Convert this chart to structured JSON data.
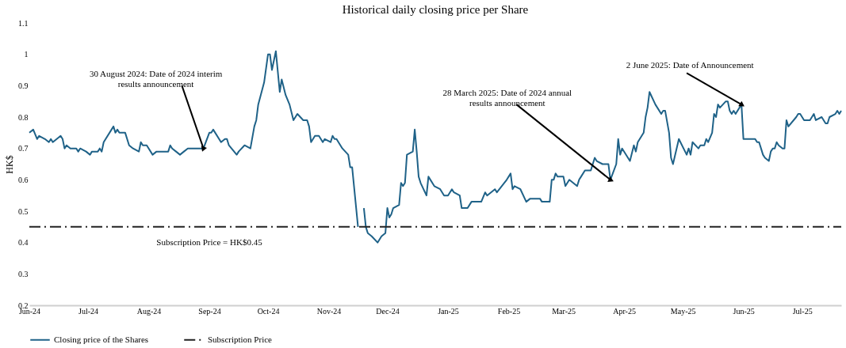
{
  "chart_data": {
    "type": "line",
    "title": "Historical daily closing price per Share",
    "ylabel": "HK$",
    "xlim": [
      "2024-06-01",
      "2025-07-21"
    ],
    "xticks": [
      {
        "value": "2024-06-01",
        "label": "Jun-24"
      },
      {
        "value": "2024-07-01",
        "label": "Jul-24"
      },
      {
        "value": "2024-08-01",
        "label": "Aug-24"
      },
      {
        "value": "2024-09-01",
        "label": "Sep-24"
      },
      {
        "value": "2024-10-01",
        "label": "Oct-24"
      },
      {
        "value": "2024-11-01",
        "label": "Nov-24"
      },
      {
        "value": "2024-12-01",
        "label": "Dec-24"
      },
      {
        "value": "2025-01-01",
        "label": "Jan-25"
      },
      {
        "value": "2025-02-01",
        "label": "Feb-25"
      },
      {
        "value": "2025-03-01",
        "label": "Mar-25"
      },
      {
        "value": "2025-04-01",
        "label": "Apr-25"
      },
      {
        "value": "2025-05-01",
        "label": "May-25"
      },
      {
        "value": "2025-06-01",
        "label": "Jun-25"
      },
      {
        "value": "2025-07-01",
        "label": "Jul-25"
      }
    ],
    "ylim": [
      0.2,
      1.1
    ],
    "yticks": [
      0.2,
      0.3,
      0.4,
      0.5,
      0.6,
      0.7,
      0.8,
      0.9,
      1,
      1.1
    ],
    "grid": false,
    "legend": "bottom",
    "marker": "none",
    "series": [
      {
        "name": "Closing price of the Shares",
        "color": "#1f6288",
        "line_style": "solid",
        "x": [
          "2024-06-01",
          "2024-06-03",
          "2024-06-05",
          "2024-06-06",
          "2024-06-09",
          "2024-06-11",
          "2024-06-12",
          "2024-06-13",
          "2024-06-15",
          "2024-06-17",
          "2024-06-18",
          "2024-06-19",
          "2024-06-20",
          "2024-06-22",
          "2024-06-25",
          "2024-06-26",
          "2024-06-27",
          "2024-06-30",
          "2024-07-02",
          "2024-07-03",
          "2024-07-06",
          "2024-07-07",
          "2024-07-08",
          "2024-07-09",
          "2024-07-14",
          "2024-07-15",
          "2024-07-16",
          "2024-07-17",
          "2024-07-20",
          "2024-07-22",
          "2024-07-24",
          "2024-07-27",
          "2024-07-28",
          "2024-07-29",
          "2024-07-31",
          "2024-08-03",
          "2024-08-05",
          "2024-08-11",
          "2024-08-12",
          "2024-08-13",
          "2024-08-15",
          "2024-08-17",
          "2024-08-19",
          "2024-08-21",
          "2024-08-29",
          "2024-09-01",
          "2024-09-02",
          "2024-09-03",
          "2024-09-07",
          "2024-09-09",
          "2024-09-10",
          "2024-09-11",
          "2024-09-15",
          "2024-09-16",
          "2024-09-19",
          "2024-09-22",
          "2024-09-24",
          "2024-09-25",
          "2024-09-26",
          "2024-09-29",
          "2024-10-01",
          "2024-10-02",
          "2024-10-03",
          "2024-10-05",
          "2024-10-07",
          "2024-10-08",
          "2024-10-10",
          "2024-10-12",
          "2024-10-14",
          "2024-10-16",
          "2024-10-19",
          "2024-10-21",
          "2024-10-22",
          "2024-10-23",
          "2024-10-25",
          "2024-10-27",
          "2024-10-29",
          "2024-10-30",
          "2024-11-02",
          "2024-11-03",
          "2024-11-04",
          "2024-11-05",
          "2024-11-08",
          "2024-11-11",
          "2024-11-12",
          "2024-11-13",
          "2024-11-16",
          "2024-11-17",
          "2024-11-19",
          "2024-11-20",
          "2024-11-21",
          "2024-11-23",
          "2024-11-26",
          "2024-11-28",
          "2024-11-30",
          "2024-12-01",
          "2024-12-02",
          "2024-12-03",
          "2024-12-04",
          "2024-12-07",
          "2024-12-08",
          "2024-12-09",
          "2024-12-10",
          "2024-12-11",
          "2024-12-14",
          "2024-12-15",
          "2024-12-16",
          "2024-12-17",
          "2024-12-18",
          "2024-12-21",
          "2024-12-22",
          "2024-12-25",
          "2024-12-28",
          "2024-12-30",
          "2025-01-01",
          "2025-01-03",
          "2025-01-04",
          "2025-01-07",
          "2025-01-08",
          "2025-01-11",
          "2025-01-13",
          "2025-01-18",
          "2025-01-20",
          "2025-01-21",
          "2025-01-25",
          "2025-01-26",
          "2025-01-31",
          "2025-02-02",
          "2025-02-03",
          "2025-02-04",
          "2025-02-07",
          "2025-02-10",
          "2025-02-12",
          "2025-02-17",
          "2025-02-18",
          "2025-02-22",
          "2025-02-23",
          "2025-02-24",
          "2025-02-25",
          "2025-02-26",
          "2025-03-01",
          "2025-03-02",
          "2025-03-04",
          "2025-03-08",
          "2025-03-09",
          "2025-03-10",
          "2025-03-12",
          "2025-03-15",
          "2025-03-17",
          "2025-03-18",
          "2025-03-21",
          "2025-03-24",
          "2025-03-25",
          "2025-03-28",
          "2025-03-29",
          "2025-03-30",
          "2025-03-31",
          "2025-04-04",
          "2025-04-06",
          "2025-04-07",
          "2025-04-08",
          "2025-04-11",
          "2025-04-12",
          "2025-04-13",
          "2025-04-14",
          "2025-04-17",
          "2025-04-20",
          "2025-04-21",
          "2025-04-22",
          "2025-04-24",
          "2025-04-25",
          "2025-04-26",
          "2025-04-29",
          "2025-05-03",
          "2025-05-04",
          "2025-05-05",
          "2025-05-06",
          "2025-05-09",
          "2025-05-10",
          "2025-05-12",
          "2025-05-13",
          "2025-05-14",
          "2025-05-16",
          "2025-05-17",
          "2025-05-18",
          "2025-05-19",
          "2025-05-20",
          "2025-05-23",
          "2025-05-24",
          "2025-05-25",
          "2025-05-26",
          "2025-05-27",
          "2025-05-28",
          "2025-05-31",
          "2025-06-01",
          "2025-06-07",
          "2025-06-08",
          "2025-06-09",
          "2025-06-10",
          "2025-06-11",
          "2025-06-12",
          "2025-06-14",
          "2025-06-15",
          "2025-06-16",
          "2025-06-17",
          "2025-06-18",
          "2025-06-19",
          "2025-06-21",
          "2025-06-22",
          "2025-06-23",
          "2025-06-24",
          "2025-06-28",
          "2025-06-29",
          "2025-06-30",
          "2025-07-02",
          "2025-07-05",
          "2025-07-06",
          "2025-07-07",
          "2025-07-08",
          "2025-07-11",
          "2025-07-13",
          "2025-07-14",
          "2025-07-15",
          "2025-07-18",
          "2025-07-19",
          "2025-07-20",
          "2025-07-21"
        ],
        "values": [
          0.75,
          0.76,
          0.73,
          0.74,
          0.73,
          0.72,
          0.73,
          0.72,
          0.73,
          0.74,
          0.73,
          0.7,
          0.71,
          0.7,
          0.7,
          0.69,
          0.7,
          0.69,
          0.68,
          0.69,
          0.69,
          0.7,
          0.69,
          0.72,
          0.77,
          0.75,
          0.76,
          0.75,
          0.75,
          0.71,
          0.7,
          0.69,
          0.72,
          0.71,
          0.71,
          0.68,
          0.69,
          0.69,
          0.71,
          0.7,
          0.69,
          0.68,
          0.69,
          0.7,
          0.7,
          0.75,
          0.75,
          0.76,
          0.72,
          0.73,
          0.73,
          0.71,
          0.68,
          0.69,
          0.71,
          0.7,
          0.77,
          0.79,
          0.84,
          0.91,
          1.0,
          1.0,
          0.95,
          1.01,
          0.88,
          0.92,
          0.87,
          0.84,
          0.79,
          0.81,
          0.79,
          0.79,
          0.77,
          0.72,
          0.74,
          0.74,
          0.72,
          0.73,
          0.72,
          0.74,
          0.73,
          0.73,
          0.7,
          0.68,
          0.64,
          0.64,
          0.45,
          null,
          0.51,
          0.45,
          0.43,
          0.42,
          0.4,
          0.42,
          0.43,
          0.51,
          0.48,
          0.49,
          0.51,
          0.52,
          0.59,
          0.58,
          0.59,
          0.68,
          0.69,
          0.76,
          0.69,
          0.61,
          0.59,
          0.55,
          0.61,
          0.58,
          0.57,
          0.55,
          0.55,
          0.57,
          0.56,
          0.55,
          0.51,
          0.51,
          0.53,
          0.53,
          0.56,
          0.55,
          0.57,
          0.56,
          0.6,
          0.62,
          0.57,
          0.58,
          0.57,
          0.53,
          0.54,
          0.54,
          0.53,
          0.53,
          0.6,
          0.6,
          0.62,
          0.61,
          0.61,
          0.58,
          0.6,
          0.58,
          0.6,
          0.61,
          0.63,
          0.63,
          0.67,
          0.66,
          0.65,
          0.65,
          0.6,
          0.65,
          0.73,
          0.68,
          0.7,
          0.66,
          0.71,
          0.69,
          0.72,
          0.75,
          0.8,
          0.83,
          0.88,
          0.84,
          0.81,
          0.82,
          0.82,
          0.75,
          0.67,
          0.65,
          0.73,
          0.68,
          0.7,
          0.68,
          0.72,
          0.7,
          0.71,
          0.71,
          0.73,
          0.72,
          0.75,
          0.81,
          0.8,
          0.84,
          0.83,
          0.85,
          0.85,
          0.82,
          0.81,
          0.82,
          0.81,
          0.84,
          0.73,
          0.73,
          0.72,
          0.72,
          0.7,
          0.68,
          0.67,
          0.66,
          0.69,
          0.7,
          0.7,
          0.72,
          0.71,
          0.7,
          0.7,
          0.79,
          0.77,
          0.8,
          0.81,
          0.81,
          0.79,
          0.79,
          0.8,
          0.81,
          0.79,
          0.8,
          0.78,
          0.78,
          0.8,
          0.81,
          0.82,
          0.81,
          0.82
        ]
      },
      {
        "name": "Subscription Price",
        "color": "#222222",
        "line_style": "dashed",
        "x": [
          "2024-06-01",
          "2025-07-21"
        ],
        "values": [
          0.45,
          0.45
        ]
      }
    ],
    "annotations": [
      {
        "text": "30 August 2024: Date of 2024 interim\nresults announcement",
        "x": "2024-08-29",
        "y": 0.7
      },
      {
        "text": "28 March 2025: Date of 2024 annual\nresults announcement",
        "x": "2025-03-25",
        "y": 0.6
      },
      {
        "text": "2 June 2025: Date of Announcement",
        "x": "2025-05-31",
        "y": 0.84
      },
      {
        "text": "Subscription Price = HK$0.45",
        "x": "2024-09-01",
        "y": 0.45
      }
    ]
  }
}
